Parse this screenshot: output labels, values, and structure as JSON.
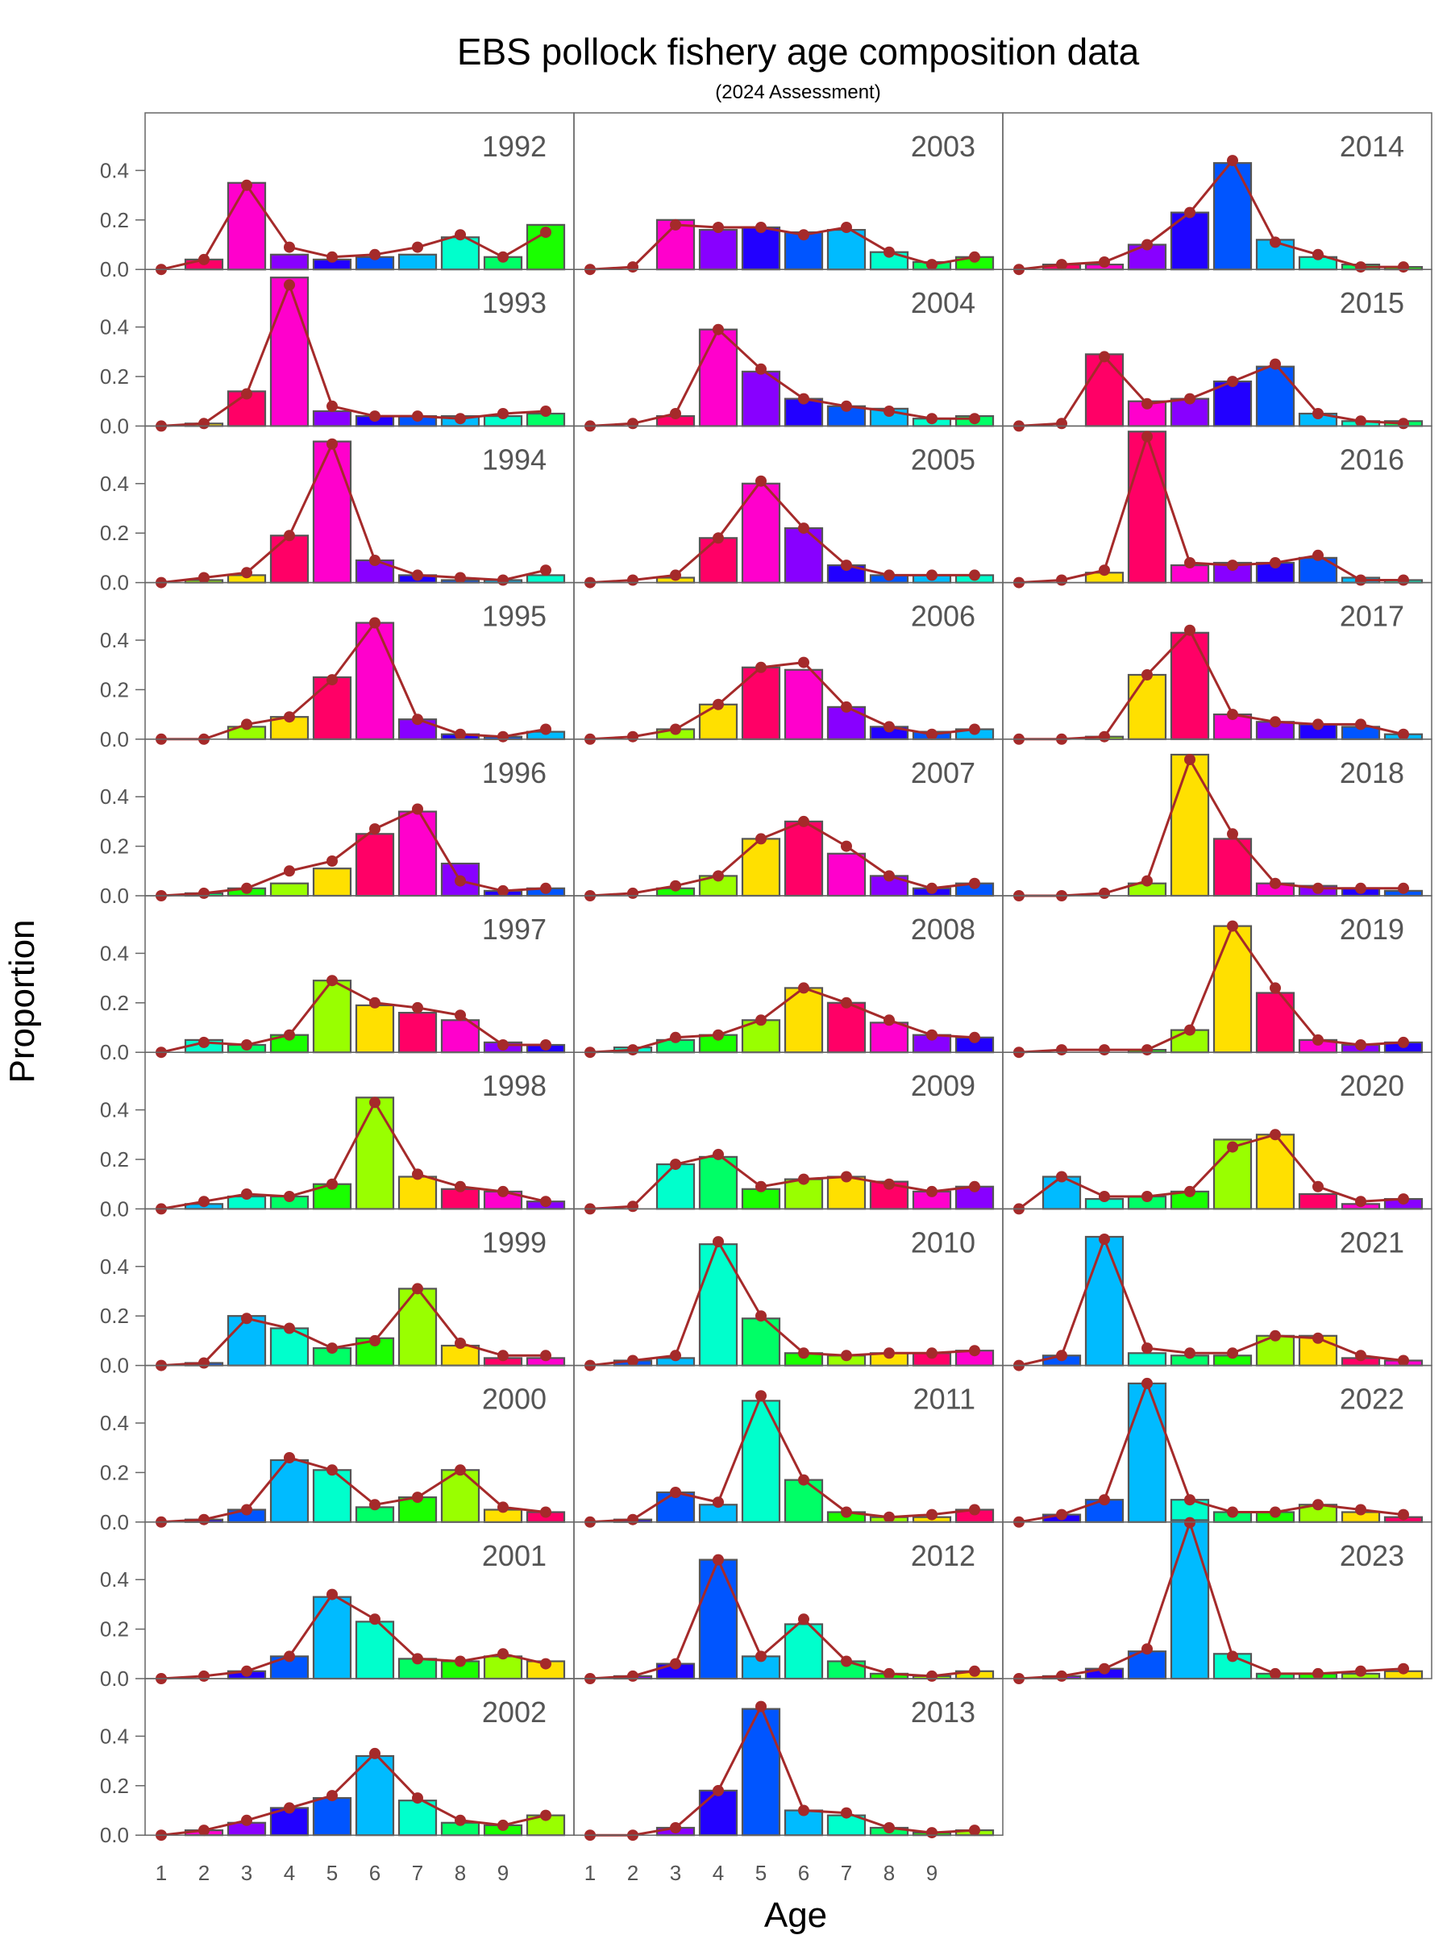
{
  "chart_data": {
    "type": "bar",
    "title": "EBS pollock fishery age composition data",
    "subtitle": "(2024 Assessment)",
    "xlabel": "Age",
    "ylabel": "Proportion",
    "x_ticks": [
      "1",
      "2",
      "3",
      "4",
      "5",
      "6",
      "7",
      "8",
      "9"
    ],
    "y_ticks": [
      "0.0",
      "0.2",
      "0.4"
    ],
    "ylim": [
      0,
      0.6
    ],
    "ages": [
      1,
      2,
      3,
      4,
      5,
      6,
      7,
      8,
      9,
      10
    ],
    "layout": {
      "columns": 3,
      "rows": 11
    },
    "color_logic": "each bar colored by cohort (birth year); hues cycle across cohorts",
    "panels": [
      {
        "year": "1992",
        "observed": [
          0.0,
          0.04,
          0.35,
          0.06,
          0.04,
          0.05,
          0.06,
          0.13,
          0.05,
          0.18
        ],
        "fit": [
          0.0,
          0.04,
          0.34,
          0.09,
          0.05,
          0.06,
          0.09,
          0.14,
          0.05,
          0.15
        ]
      },
      {
        "year": "1993",
        "observed": [
          0.0,
          0.01,
          0.14,
          0.6,
          0.06,
          0.04,
          0.04,
          0.04,
          0.04,
          0.05
        ],
        "fit": [
          0.0,
          0.01,
          0.13,
          0.57,
          0.08,
          0.04,
          0.04,
          0.03,
          0.05,
          0.06
        ]
      },
      {
        "year": "1994",
        "observed": [
          0.0,
          0.01,
          0.03,
          0.19,
          0.57,
          0.09,
          0.03,
          0.01,
          0.01,
          0.03
        ],
        "fit": [
          0.0,
          0.02,
          0.04,
          0.19,
          0.56,
          0.09,
          0.03,
          0.02,
          0.01,
          0.05
        ]
      },
      {
        "year": "1995",
        "observed": [
          0.0,
          0.0,
          0.05,
          0.09,
          0.25,
          0.47,
          0.08,
          0.02,
          0.01,
          0.03
        ],
        "fit": [
          0.0,
          0.0,
          0.06,
          0.09,
          0.24,
          0.47,
          0.08,
          0.02,
          0.01,
          0.04
        ]
      },
      {
        "year": "1996",
        "observed": [
          0.0,
          0.01,
          0.03,
          0.05,
          0.11,
          0.25,
          0.34,
          0.13,
          0.02,
          0.03
        ],
        "fit": [
          0.0,
          0.01,
          0.03,
          0.1,
          0.14,
          0.27,
          0.35,
          0.06,
          0.02,
          0.03
        ]
      },
      {
        "year": "1997",
        "observed": [
          0.0,
          0.05,
          0.03,
          0.07,
          0.29,
          0.19,
          0.16,
          0.13,
          0.04,
          0.03
        ],
        "fit": [
          0.0,
          0.04,
          0.03,
          0.07,
          0.29,
          0.2,
          0.18,
          0.15,
          0.03,
          0.03
        ]
      },
      {
        "year": "1998",
        "observed": [
          0.0,
          0.02,
          0.05,
          0.05,
          0.1,
          0.45,
          0.13,
          0.08,
          0.07,
          0.03
        ],
        "fit": [
          0.0,
          0.03,
          0.06,
          0.05,
          0.1,
          0.43,
          0.14,
          0.09,
          0.07,
          0.03
        ]
      },
      {
        "year": "1999",
        "observed": [
          0.0,
          0.01,
          0.2,
          0.15,
          0.07,
          0.11,
          0.31,
          0.08,
          0.03,
          0.03
        ],
        "fit": [
          0.0,
          0.01,
          0.19,
          0.15,
          0.07,
          0.1,
          0.31,
          0.09,
          0.04,
          0.04
        ]
      },
      {
        "year": "2000",
        "observed": [
          0.0,
          0.01,
          0.05,
          0.25,
          0.21,
          0.06,
          0.1,
          0.21,
          0.05,
          0.04
        ],
        "fit": [
          0.0,
          0.01,
          0.05,
          0.26,
          0.21,
          0.07,
          0.1,
          0.21,
          0.06,
          0.04
        ]
      },
      {
        "year": "2001",
        "observed": [
          0.0,
          0.0,
          0.03,
          0.09,
          0.33,
          0.23,
          0.08,
          0.07,
          0.09,
          0.07
        ],
        "fit": [
          0.0,
          0.01,
          0.03,
          0.09,
          0.34,
          0.24,
          0.08,
          0.07,
          0.1,
          0.06
        ]
      },
      {
        "year": "2002",
        "observed": [
          0.0,
          0.02,
          0.05,
          0.11,
          0.15,
          0.32,
          0.14,
          0.05,
          0.04,
          0.08
        ],
        "fit": [
          0.0,
          0.02,
          0.06,
          0.11,
          0.16,
          0.33,
          0.15,
          0.06,
          0.04,
          0.08
        ]
      },
      {
        "year": "2003",
        "observed": [
          0.0,
          0.0,
          0.2,
          0.16,
          0.17,
          0.15,
          0.16,
          0.07,
          0.03,
          0.05
        ],
        "fit": [
          0.0,
          0.01,
          0.18,
          0.17,
          0.17,
          0.14,
          0.17,
          0.07,
          0.02,
          0.05
        ]
      },
      {
        "year": "2004",
        "observed": [
          0.0,
          0.0,
          0.04,
          0.39,
          0.22,
          0.11,
          0.08,
          0.07,
          0.03,
          0.04
        ],
        "fit": [
          0.0,
          0.01,
          0.05,
          0.39,
          0.23,
          0.11,
          0.08,
          0.06,
          0.03,
          0.03
        ]
      },
      {
        "year": "2005",
        "observed": [
          0.0,
          0.0,
          0.02,
          0.18,
          0.4,
          0.22,
          0.07,
          0.03,
          0.03,
          0.03
        ],
        "fit": [
          0.0,
          0.01,
          0.03,
          0.18,
          0.41,
          0.22,
          0.07,
          0.03,
          0.03,
          0.03
        ]
      },
      {
        "year": "2006",
        "observed": [
          0.0,
          0.0,
          0.04,
          0.14,
          0.29,
          0.28,
          0.13,
          0.05,
          0.03,
          0.04
        ],
        "fit": [
          0.0,
          0.01,
          0.04,
          0.14,
          0.29,
          0.31,
          0.13,
          0.05,
          0.02,
          0.04
        ]
      },
      {
        "year": "2007",
        "observed": [
          0.0,
          0.0,
          0.03,
          0.08,
          0.23,
          0.3,
          0.17,
          0.08,
          0.03,
          0.05
        ],
        "fit": [
          0.0,
          0.01,
          0.04,
          0.08,
          0.23,
          0.3,
          0.2,
          0.08,
          0.03,
          0.05
        ]
      },
      {
        "year": "2008",
        "observed": [
          0.0,
          0.02,
          0.05,
          0.07,
          0.13,
          0.26,
          0.2,
          0.12,
          0.07,
          0.06
        ],
        "fit": [
          0.0,
          0.01,
          0.06,
          0.07,
          0.13,
          0.26,
          0.2,
          0.13,
          0.07,
          0.06
        ]
      },
      {
        "year": "2009",
        "observed": [
          0.0,
          0.0,
          0.18,
          0.21,
          0.08,
          0.12,
          0.13,
          0.11,
          0.07,
          0.09
        ],
        "fit": [
          0.0,
          0.01,
          0.18,
          0.22,
          0.09,
          0.12,
          0.13,
          0.1,
          0.07,
          0.09
        ]
      },
      {
        "year": "2010",
        "observed": [
          0.0,
          0.02,
          0.03,
          0.49,
          0.19,
          0.05,
          0.04,
          0.05,
          0.05,
          0.06
        ],
        "fit": [
          0.0,
          0.02,
          0.04,
          0.5,
          0.2,
          0.05,
          0.04,
          0.05,
          0.05,
          0.06
        ]
      },
      {
        "year": "2011",
        "observed": [
          0.0,
          0.01,
          0.12,
          0.07,
          0.49,
          0.17,
          0.04,
          0.02,
          0.02,
          0.05
        ],
        "fit": [
          0.0,
          0.01,
          0.12,
          0.08,
          0.51,
          0.17,
          0.04,
          0.02,
          0.03,
          0.05
        ]
      },
      {
        "year": "2012",
        "observed": [
          0.0,
          0.01,
          0.06,
          0.48,
          0.09,
          0.22,
          0.07,
          0.02,
          0.01,
          0.03
        ],
        "fit": [
          0.0,
          0.01,
          0.06,
          0.48,
          0.09,
          0.24,
          0.07,
          0.02,
          0.01,
          0.03
        ]
      },
      {
        "year": "2013",
        "observed": [
          0.0,
          0.0,
          0.03,
          0.18,
          0.51,
          0.1,
          0.08,
          0.03,
          0.01,
          0.02
        ],
        "fit": [
          0.0,
          0.0,
          0.03,
          0.18,
          0.52,
          0.1,
          0.09,
          0.03,
          0.01,
          0.02
        ]
      },
      {
        "year": "2014",
        "observed": [
          0.0,
          0.02,
          0.02,
          0.1,
          0.23,
          0.43,
          0.12,
          0.05,
          0.02,
          0.01
        ],
        "fit": [
          0.0,
          0.02,
          0.03,
          0.1,
          0.23,
          0.44,
          0.11,
          0.06,
          0.01,
          0.01
        ]
      },
      {
        "year": "2015",
        "observed": [
          0.0,
          0.0,
          0.29,
          0.1,
          0.11,
          0.18,
          0.24,
          0.05,
          0.02,
          0.02
        ],
        "fit": [
          0.0,
          0.01,
          0.28,
          0.09,
          0.11,
          0.18,
          0.25,
          0.05,
          0.02,
          0.01
        ]
      },
      {
        "year": "2016",
        "observed": [
          0.0,
          0.0,
          0.04,
          0.61,
          0.07,
          0.08,
          0.08,
          0.1,
          0.02,
          0.01
        ],
        "fit": [
          0.0,
          0.01,
          0.05,
          0.59,
          0.08,
          0.07,
          0.08,
          0.11,
          0.01,
          0.01
        ]
      },
      {
        "year": "2017",
        "observed": [
          0.0,
          0.0,
          0.01,
          0.26,
          0.43,
          0.1,
          0.07,
          0.06,
          0.05,
          0.02
        ],
        "fit": [
          0.0,
          0.0,
          0.01,
          0.26,
          0.44,
          0.1,
          0.07,
          0.06,
          0.06,
          0.02
        ]
      },
      {
        "year": "2018",
        "observed": [
          0.0,
          0.0,
          0.0,
          0.05,
          0.57,
          0.23,
          0.05,
          0.04,
          0.03,
          0.02
        ],
        "fit": [
          0.0,
          0.0,
          0.01,
          0.06,
          0.55,
          0.25,
          0.05,
          0.03,
          0.03,
          0.03
        ]
      },
      {
        "year": "2019",
        "observed": [
          0.0,
          0.0,
          0.0,
          0.01,
          0.09,
          0.51,
          0.24,
          0.05,
          0.03,
          0.04
        ],
        "fit": [
          0.0,
          0.01,
          0.01,
          0.01,
          0.09,
          0.51,
          0.26,
          0.05,
          0.03,
          0.04
        ]
      },
      {
        "year": "2020",
        "observed": [
          0.0,
          0.13,
          0.04,
          0.05,
          0.07,
          0.28,
          0.3,
          0.06,
          0.02,
          0.04
        ],
        "fit": [
          0.0,
          0.13,
          0.05,
          0.05,
          0.07,
          0.25,
          0.3,
          0.09,
          0.03,
          0.04
        ]
      },
      {
        "year": "2021",
        "observed": [
          0.0,
          0.04,
          0.52,
          0.05,
          0.04,
          0.04,
          0.12,
          0.12,
          0.03,
          0.02
        ],
        "fit": [
          0.0,
          0.04,
          0.51,
          0.07,
          0.05,
          0.05,
          0.12,
          0.11,
          0.04,
          0.02
        ]
      },
      {
        "year": "2022",
        "observed": [
          0.0,
          0.03,
          0.09,
          0.56,
          0.09,
          0.04,
          0.04,
          0.07,
          0.04,
          0.02
        ],
        "fit": [
          0.0,
          0.03,
          0.09,
          0.56,
          0.09,
          0.04,
          0.04,
          0.07,
          0.05,
          0.03
        ]
      },
      {
        "year": "2023",
        "observed": [
          0.0,
          0.01,
          0.04,
          0.11,
          0.64,
          0.1,
          0.02,
          0.02,
          0.02,
          0.03
        ],
        "fit": [
          0.0,
          0.01,
          0.04,
          0.12,
          0.63,
          0.09,
          0.02,
          0.02,
          0.03,
          0.04
        ]
      }
    ]
  }
}
